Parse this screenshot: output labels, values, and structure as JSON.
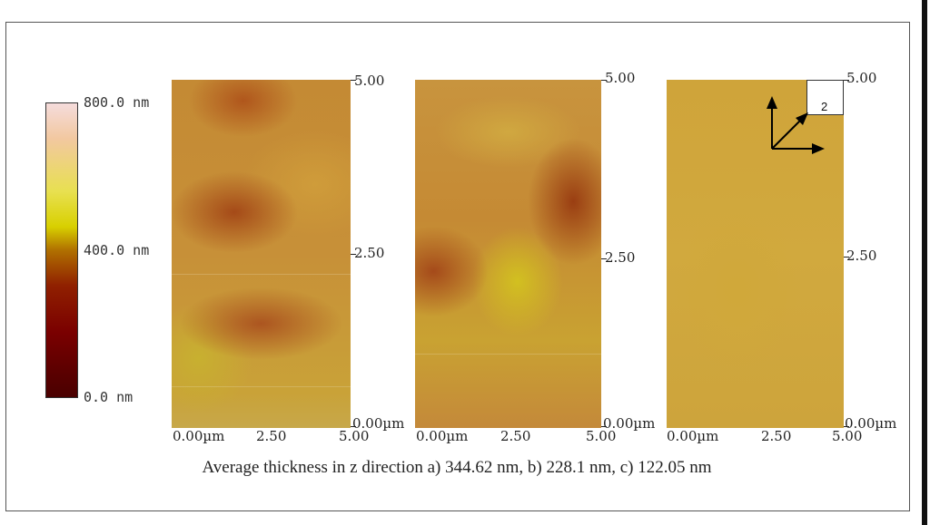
{
  "colorbar": {
    "max_label": "800.0 nm",
    "mid_label": "400.0 nm",
    "min_label": "0.0 nm"
  },
  "panels": [
    {
      "y_ticks": [
        "5.00",
        "2.50",
        "0.00µm"
      ],
      "x_ticks": [
        "0.00µm",
        "2.50",
        "5.00"
      ]
    },
    {
      "y_ticks": [
        "5.00",
        "2.50",
        "0.00µm"
      ],
      "x_ticks": [
        "0.00µm",
        "2.50",
        "5.00"
      ]
    },
    {
      "y_ticks": [
        "5.00",
        "2.50",
        "0.00µm"
      ],
      "x_ticks": [
        "0.00µm",
        "2.50",
        "5.00"
      ]
    }
  ],
  "axes_inset": {
    "label": "2"
  },
  "caption": "Average thickness in z direction a) 344.62 nm, b) 228.1 nm, c) 122.05 nm"
}
